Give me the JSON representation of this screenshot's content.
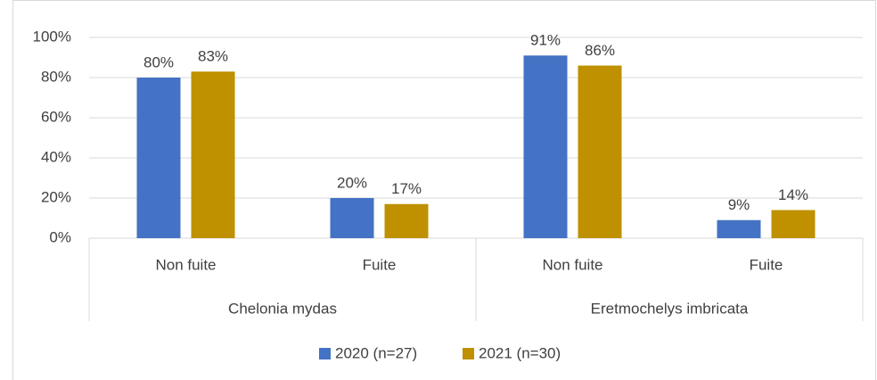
{
  "chart_data": {
    "type": "bar",
    "categories": [
      "Non fuite",
      "Fuite",
      "Non fuite",
      "Fuite"
    ],
    "groups": [
      "Chelonia mydas",
      "Eretmochelys imbricata"
    ],
    "series": [
      {
        "name": "2020 (n=27)",
        "color": "#4472c4",
        "values": [
          80,
          20,
          91,
          9
        ],
        "value_labels": [
          "80%",
          "20%",
          "91%",
          "9%"
        ]
      },
      {
        "name": "2021 (n=30)",
        "color": "#bf9000",
        "values": [
          83,
          17,
          86,
          14
        ],
        "value_labels": [
          "83%",
          "17%",
          "86%",
          "14%"
        ]
      }
    ],
    "ylim": [
      0,
      100
    ],
    "yticks": [
      {
        "value": 0,
        "label": "0%"
      },
      {
        "value": 20,
        "label": "20%"
      },
      {
        "value": 40,
        "label": "40%"
      },
      {
        "value": 60,
        "label": "60%"
      },
      {
        "value": 80,
        "label": "80%"
      },
      {
        "value": 100,
        "label": "100%"
      }
    ],
    "grid": true,
    "legend": "bottom"
  }
}
